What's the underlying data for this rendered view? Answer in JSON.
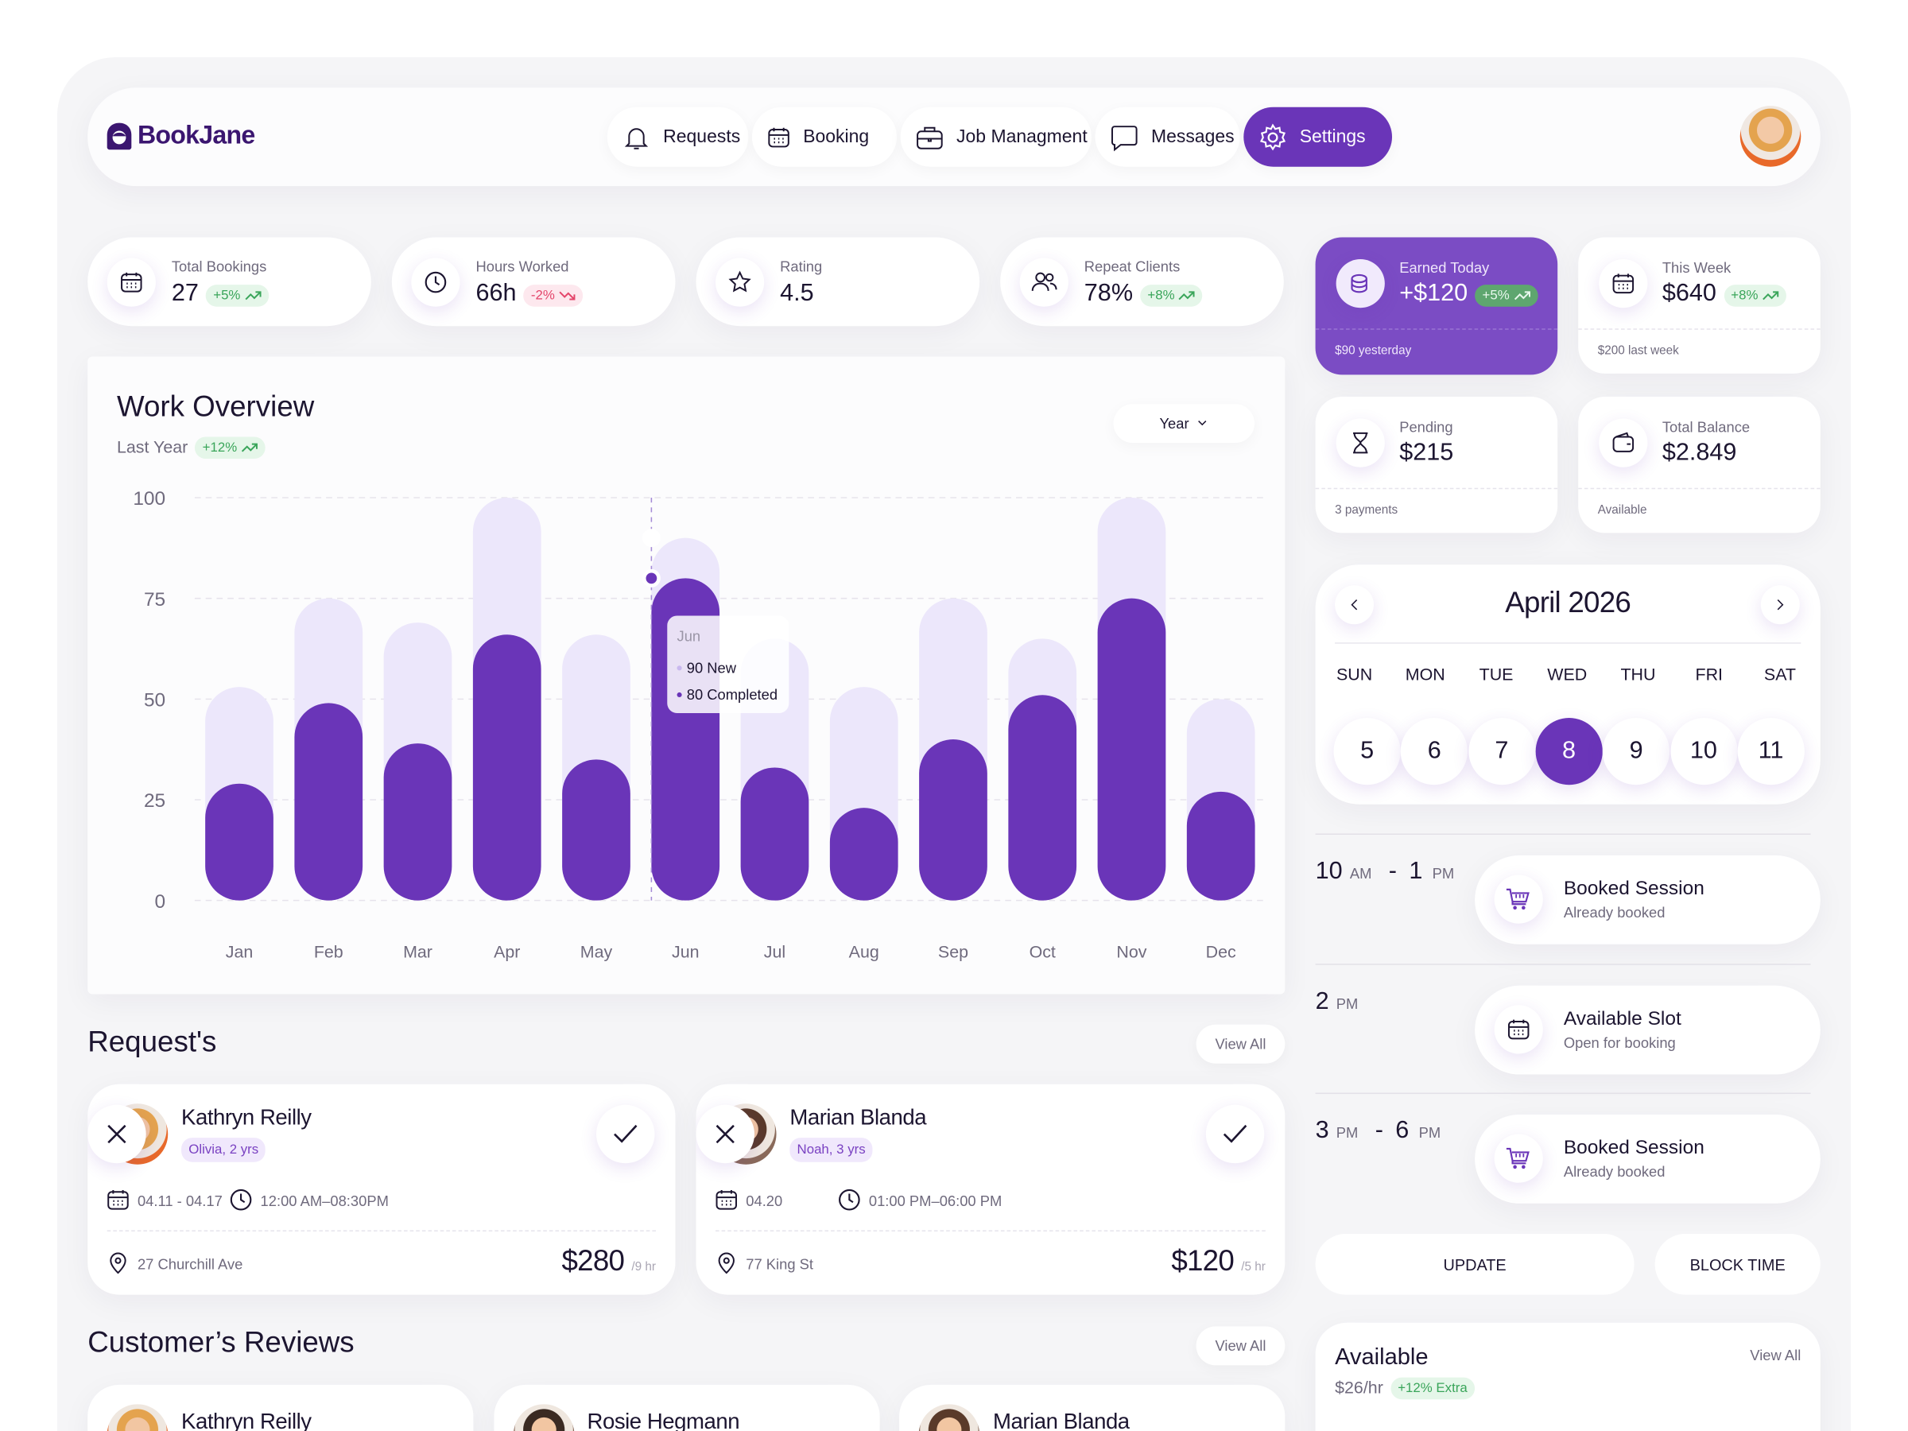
{
  "brand": "BookJane",
  "nav": [
    "Requests",
    "Booking",
    "Job Managment",
    "Messages",
    "Settings"
  ],
  "stats": [
    {
      "label": "Total Bookings",
      "value": "27",
      "change": "+5%"
    },
    {
      "label": "Hours Worked",
      "value": "66h",
      "change": "-2%"
    },
    {
      "label": "Rating",
      "value": "4.5"
    },
    {
      "label": "Repeat Clients",
      "value": "78%",
      "change": "+8%"
    }
  ],
  "earnings": [
    {
      "label": "Earned Today",
      "value": "+$120",
      "change": "+5%",
      "note": "$90 yesterday"
    },
    {
      "label": "This Week",
      "value": "$640",
      "change": "+8%",
      "note": "$200 last week"
    },
    {
      "label": "Pending",
      "value": "$215",
      "note": "3 payments"
    },
    {
      "label": "Total Balance",
      "value": "$2.849",
      "note": "Available"
    }
  ],
  "chart_data": {
    "type": "bar",
    "title": "Work Overview",
    "subtitle": "Last Year",
    "change": "+12%",
    "range": "Year",
    "categories": [
      "Jan",
      "Feb",
      "Mar",
      "Apr",
      "May",
      "Jun",
      "Jul",
      "Aug",
      "Sep",
      "Oct",
      "Nov",
      "Dec"
    ],
    "series": [
      {
        "name": "New",
        "color": "#ece7fb",
        "values": [
          53,
          75,
          69,
          100,
          66,
          90,
          65,
          53,
          75,
          65,
          100,
          50
        ]
      },
      {
        "name": "Completed",
        "color": "#6a35b8",
        "values": [
          29,
          49,
          39,
          66,
          35,
          80,
          33,
          23,
          40,
          51,
          75,
          27
        ]
      }
    ],
    "ylim": [
      0,
      100
    ],
    "yticks": [
      0,
      25,
      50,
      75,
      100
    ],
    "grid": true
  },
  "requests": {
    "title": "Request's",
    "view_all": "View All",
    "items": [
      {
        "name": "Kathryn Reilly",
        "child": "Olivia, 2 yrs",
        "dates": "04.11 - 04.17",
        "time": "12:00 AM–08:30PM",
        "address": "27 Churchill Ave",
        "price": "$280",
        "unit": "/9 hr"
      },
      {
        "name": "Marian Blanda",
        "child": "Noah, 3 yrs",
        "dates": "04.20",
        "time": "01:00 PM–06:00 PM",
        "address": "77 King St",
        "price": "$120",
        "unit": "/5 hr"
      }
    ]
  },
  "reviews": {
    "title": "Customer’s Reviews",
    "view_all": "View All",
    "names": [
      "Kathryn Reilly",
      "Rosie Hegmann",
      "Marian Blanda"
    ]
  },
  "calendar": {
    "month": "April 2026",
    "weekdays": [
      "SUN",
      "MON",
      "TUE",
      "WED",
      "THU",
      "FRI",
      "SAT"
    ],
    "days": [
      "5",
      "6",
      "7",
      "8",
      "9",
      "10",
      "11"
    ]
  },
  "schedule": [
    {
      "start": "10",
      "start_period": "AM",
      "end": "1",
      "end_period": "PM",
      "title": "Booked Session",
      "subtitle": "Already booked"
    },
    {
      "start": "2",
      "start_period": "PM",
      "title": "Available Slot",
      "subtitle": "Open for booking"
    },
    {
      "start": "3",
      "start_period": "PM",
      "end": "6",
      "end_period": "PM",
      "title": "Booked Session",
      "subtitle": "Already booked"
    }
  ],
  "actions": [
    "UPDATE",
    "BLOCK TIME"
  ],
  "available": {
    "title": "Available",
    "rate": "$26/hr",
    "extra": "+12% Extra",
    "view_all": "View All"
  }
}
